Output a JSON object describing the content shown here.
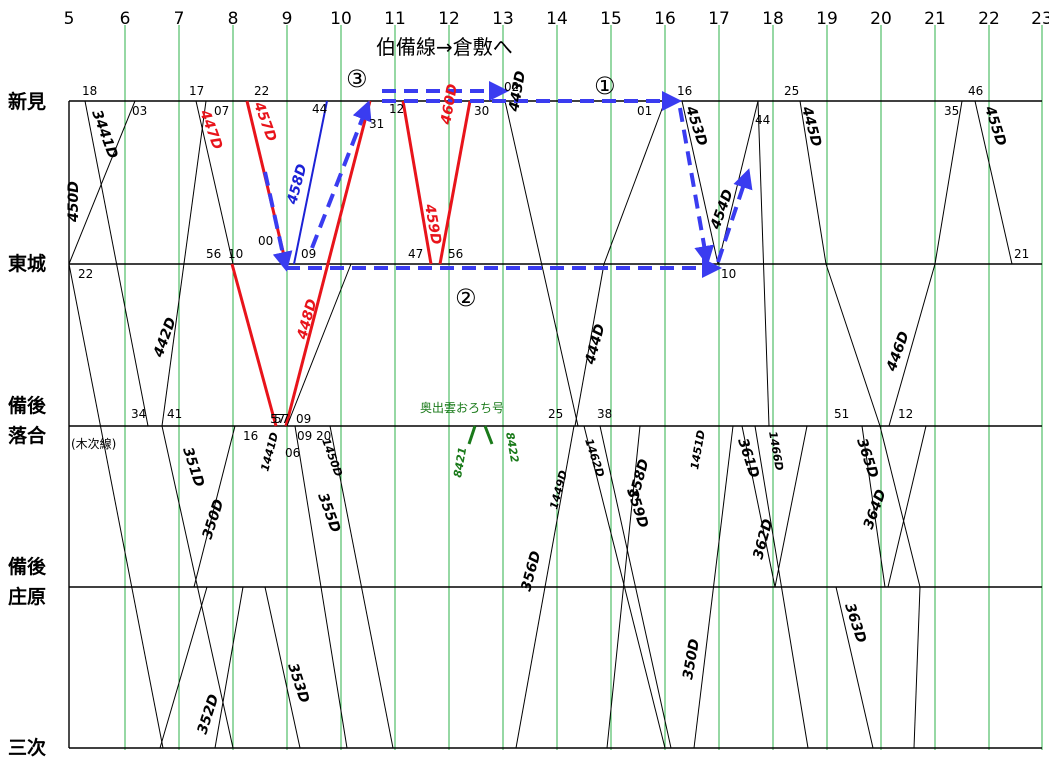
{
  "hours": [
    "5",
    "6",
    "7",
    "8",
    "9",
    "10",
    "11",
    "12",
    "13",
    "14",
    "15",
    "16",
    "17",
    "18",
    "19",
    "20",
    "21",
    "22",
    "23"
  ],
  "stations": [
    {
      "name": "新見",
      "sub": ""
    },
    {
      "name": "東城",
      "sub": ""
    },
    {
      "name": "備後\n落合",
      "sub": "(木次線)"
    },
    {
      "name": "備後\n庄原",
      "sub": ""
    },
    {
      "name": "三次",
      "sub": ""
    }
  ],
  "colors": {
    "black": "#000000",
    "red": "#e8141b",
    "blue": "#1c22d6",
    "route_blue": "#3a3cf0",
    "green_grid": "#2db14a",
    "special": "#1a7a1a"
  },
  "route_labels": {
    "hakubi": "伯備線→倉敷へ"
  },
  "circle_labels": [
    "①",
    "②",
    "③"
  ],
  "special_note": "奥出雲おろち号",
  "special_trains": [
    {
      "label": "8421"
    },
    {
      "label": "8422"
    }
  ],
  "trains": [
    {
      "label": "3441D",
      "color": "black"
    },
    {
      "label": "450D",
      "color": "black"
    },
    {
      "label": "447D",
      "color": "red"
    },
    {
      "label": "442D",
      "color": "black"
    },
    {
      "label": "457D",
      "color": "red"
    },
    {
      "label": "458D",
      "color": "blue"
    },
    {
      "label": "448D",
      "color": "red"
    },
    {
      "label": "459D",
      "color": "red"
    },
    {
      "label": "460D",
      "color": "red"
    },
    {
      "label": "443D",
      "color": "black"
    },
    {
      "label": "444D",
      "color": "black"
    },
    {
      "label": "453D",
      "color": "black"
    },
    {
      "label": "454D",
      "color": "black"
    },
    {
      "label": "445D",
      "color": "black"
    },
    {
      "label": "446D",
      "color": "black"
    },
    {
      "label": "455D",
      "color": "black"
    },
    {
      "label": "351D",
      "color": "black"
    },
    {
      "label": "350D",
      "color": "black"
    },
    {
      "label": "1441D",
      "color": "black"
    },
    {
      "label": "1450D",
      "color": "black"
    },
    {
      "label": "355D",
      "color": "black"
    },
    {
      "label": "1449D",
      "color": "black"
    },
    {
      "label": "1462D",
      "color": "black"
    },
    {
      "label": "358D",
      "color": "black"
    },
    {
      "label": "359D",
      "color": "black"
    },
    {
      "label": "356D",
      "color": "black"
    },
    {
      "label": "1451D",
      "color": "black"
    },
    {
      "label": "361D",
      "color": "black"
    },
    {
      "label": "1466D",
      "color": "black"
    },
    {
      "label": "362D",
      "color": "black"
    },
    {
      "label": "365D",
      "color": "black"
    },
    {
      "label": "364D",
      "color": "black"
    },
    {
      "label": "352D",
      "color": "black"
    },
    {
      "label": "353D",
      "color": "black"
    },
    {
      "label": "350D",
      "color": "black"
    },
    {
      "label": "363D",
      "color": "black"
    }
  ],
  "minutes": [
    {
      "text": "18"
    },
    {
      "text": "03"
    },
    {
      "text": "17"
    },
    {
      "text": "07"
    },
    {
      "text": "22"
    },
    {
      "text": "44"
    },
    {
      "text": "31"
    },
    {
      "text": "12"
    },
    {
      "text": "30"
    },
    {
      "text": "02"
    },
    {
      "text": "01"
    },
    {
      "text": "16"
    },
    {
      "text": "44"
    },
    {
      "text": "25"
    },
    {
      "text": "35"
    },
    {
      "text": "46"
    },
    {
      "text": "22"
    },
    {
      "text": "56"
    },
    {
      "text": "10"
    },
    {
      "text": "00"
    },
    {
      "text": "09"
    },
    {
      "text": "47"
    },
    {
      "text": "56"
    },
    {
      "text": "57"
    },
    {
      "text": "10"
    },
    {
      "text": "21"
    },
    {
      "text": "34"
    },
    {
      "text": "41"
    },
    {
      "text": "57"
    },
    {
      "text": "09"
    },
    {
      "text": "16"
    },
    {
      "text": "09"
    },
    {
      "text": "20"
    },
    {
      "text": "06"
    },
    {
      "text": "25"
    },
    {
      "text": "38"
    },
    {
      "text": "51"
    },
    {
      "text": "12"
    }
  ]
}
